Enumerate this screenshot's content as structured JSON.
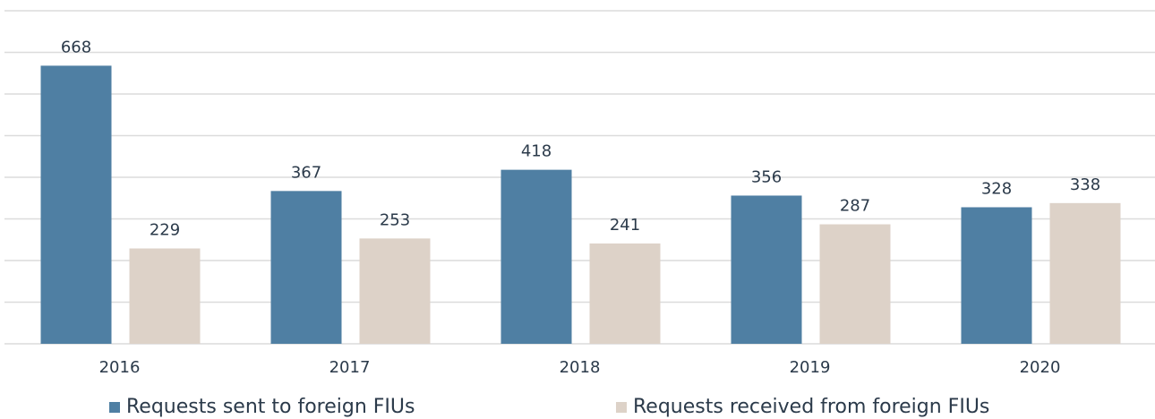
{
  "chart_data": {
    "type": "bar",
    "categories": [
      "2016",
      "2017",
      "2018",
      "2019",
      "2020"
    ],
    "series": [
      {
        "name": "Requests sent to foreign FIUs",
        "color": "#4f7fa3",
        "values": [
          668,
          367,
          418,
          356,
          328
        ]
      },
      {
        "name": "Requests received from foreign FIUs",
        "color": "#ddd2c8",
        "values": [
          229,
          253,
          241,
          287,
          338
        ]
      }
    ],
    "ylim": [
      0,
      800
    ],
    "yticks": [
      0,
      100,
      200,
      300,
      400,
      500,
      600,
      700,
      800
    ],
    "grid": true,
    "legend": "bottom"
  }
}
